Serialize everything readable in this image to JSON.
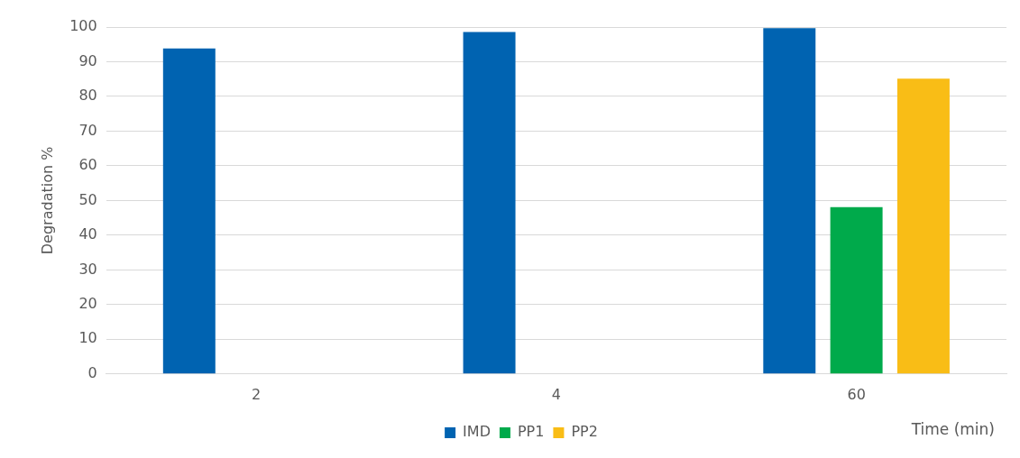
{
  "chart_data": {
    "type": "bar",
    "xlabel": "Time (min)",
    "ylabel": "Degradation %",
    "categories": [
      "2",
      "4",
      "60"
    ],
    "series": [
      {
        "name": "IMD",
        "color": "#0063b1",
        "values": [
          93.8,
          98.6,
          99.7
        ]
      },
      {
        "name": "PP1",
        "color": "#00aa4b",
        "values": [
          null,
          null,
          48.1
        ]
      },
      {
        "name": "PP2",
        "color": "#f9bd16",
        "values": [
          null,
          null,
          85.1
        ]
      }
    ],
    "ylim": [
      0,
      100
    ],
    "yticks": [
      0,
      10,
      20,
      30,
      40,
      50,
      60,
      70,
      80,
      90,
      100
    ],
    "grid": "y",
    "legend": "bottom"
  }
}
